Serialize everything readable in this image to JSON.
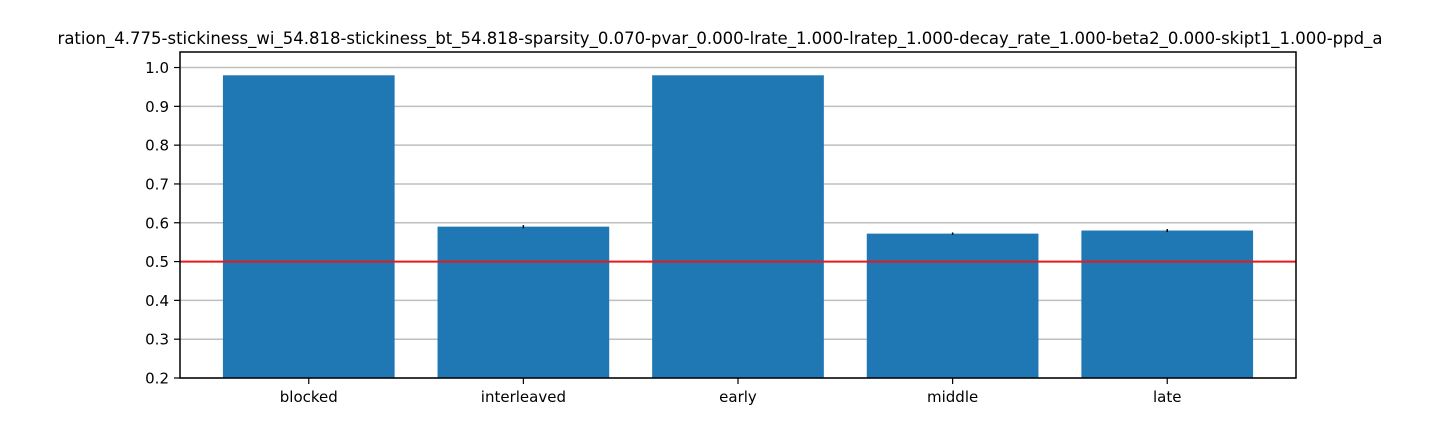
{
  "chart_data": {
    "type": "bar",
    "title": "ration_4.775-stickiness_wi_54.818-stickiness_bt_54.818-sparsity_0.070-pvar_0.000-lrate_1.000-lratep_1.000-decay_rate_1.000-beta2_0.000-skipt1_1.000-ppd_a",
    "categories": [
      "blocked",
      "interleaved",
      "early",
      "middle",
      "late"
    ],
    "values": [
      0.98,
      0.59,
      0.98,
      0.572,
      0.58
    ],
    "errors": [
      0.0,
      0.004,
      0.0,
      0.003,
      0.004
    ],
    "xlabel": "",
    "ylabel": "",
    "ylim": [
      0.2,
      1.04
    ],
    "yticks": [
      "0.2",
      "0.3",
      "0.4",
      "0.5",
      "0.6",
      "0.7",
      "0.8",
      "0.9",
      "1.0"
    ],
    "grid": "horizontal",
    "reference_line": 0.5,
    "colors": {
      "bar": "#1f77b4",
      "reference_line": "#e41a1c",
      "grid": "#bfbfbf"
    }
  }
}
